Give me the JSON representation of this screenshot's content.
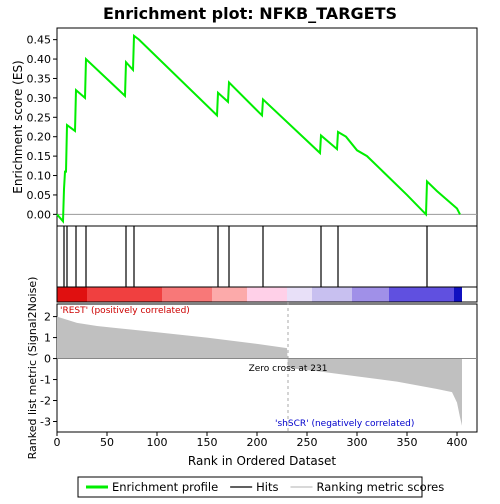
{
  "chart_data": {
    "type": "line",
    "title": "Enrichment plot: NFKB_TARGETS",
    "es_panel": {
      "ylabel": "Enrichment score (ES)",
      "ylim": [
        -0.03,
        0.48
      ],
      "yticks": [
        "0.00",
        "0.05",
        "0.10",
        "0.15",
        "0.20",
        "0.25",
        "0.30",
        "0.35",
        "0.40",
        "0.45"
      ],
      "series": [
        {
          "name": "Enrichment profile",
          "color": "#00ee00",
          "x": [
            0,
            6,
            7,
            8,
            9,
            10,
            18,
            19,
            28,
            29,
            68,
            69,
            76,
            77,
            82,
            160,
            161,
            171,
            172,
            205,
            206,
            263,
            264,
            280,
            281,
            289,
            300,
            310,
            330,
            350,
            369,
            370,
            380,
            400,
            403
          ],
          "y": [
            0.0,
            -0.018,
            0.065,
            0.11,
            0.11,
            0.23,
            0.215,
            0.32,
            0.3,
            0.4,
            0.305,
            0.392,
            0.372,
            0.46,
            0.45,
            0.255,
            0.313,
            0.29,
            0.34,
            0.255,
            0.296,
            0.158,
            0.203,
            0.168,
            0.212,
            0.2,
            0.165,
            0.15,
            0.1,
            0.05,
            0.0,
            0.085,
            0.06,
            0.015,
            0.0
          ]
        }
      ]
    },
    "hits_panel": {
      "hit_positions": [
        7,
        10,
        19,
        29,
        69,
        77,
        161,
        172,
        206,
        264,
        281,
        370
      ]
    },
    "rank_panel": {
      "xlabel": "Rank in Ordered Dataset",
      "ylabel": "Ranked list metric (Signal2Noise)",
      "ylim": [
        -3.5,
        2.6
      ],
      "yticks": [
        "-3",
        "-2",
        "-1",
        "0",
        "1",
        "2"
      ],
      "xticks": [
        "0",
        "50",
        "100",
        "150",
        "200",
        "250",
        "300",
        "350",
        "400"
      ],
      "xlim": [
        0,
        420
      ],
      "metric_x": [
        0,
        10,
        20,
        40,
        60,
        100,
        150,
        200,
        230,
        231,
        260,
        300,
        340,
        380,
        395,
        400,
        403,
        405
      ],
      "metric_y": [
        2.0,
        1.85,
        1.7,
        1.55,
        1.45,
        1.25,
        1.0,
        0.7,
        0.5,
        -0.45,
        -0.6,
        -0.85,
        -1.1,
        -1.45,
        -1.6,
        -2.1,
        -2.8,
        -3.2
      ],
      "zero_cross_label": "Zero cross at 231",
      "zero_cross_x": 231,
      "positive_label": "'REST' (positively correlated)",
      "negative_label": "'shSCR' (negatively correlated)"
    },
    "legend": {
      "placement": "bottom",
      "items": [
        {
          "name": "Enrichment profile",
          "color": "#00ee00"
        },
        {
          "name": "Hits",
          "color": "#000000"
        },
        {
          "name": "Ranking metric scores",
          "color": "#c0c0c0"
        }
      ]
    },
    "colors": {
      "positive": "#ff0000",
      "negative": "#0000ff",
      "metric_fill": "#c0c0c0",
      "zero_line": "#aaaaaa"
    }
  }
}
